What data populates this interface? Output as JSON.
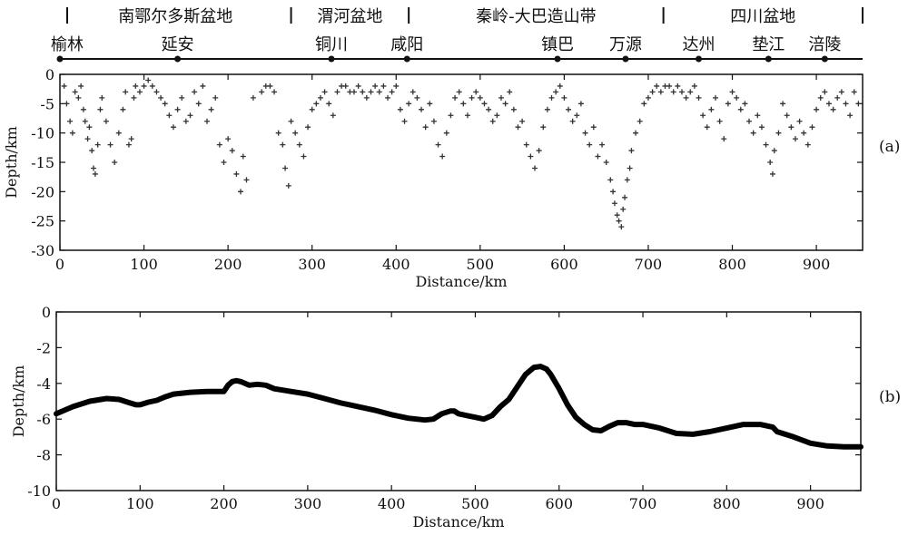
{
  "profile": {
    "regions": [
      {
        "label": "南鄂尔多斯盆地",
        "from_km": 0,
        "to_km": 275
      },
      {
        "label": "渭河盆地",
        "from_km": 275,
        "to_km": 415
      },
      {
        "label": "秦岭-大巴造山带",
        "from_km": 415,
        "to_km": 718
      },
      {
        "label": "四川盆地",
        "from_km": 718,
        "to_km": 955
      }
    ],
    "stations": [
      {
        "label": "榆林",
        "km": 0
      },
      {
        "label": "延安",
        "km": 140
      },
      {
        "label": "铜川",
        "km": 323
      },
      {
        "label": "咸阳",
        "km": 413
      },
      {
        "label": "镇巴",
        "km": 592
      },
      {
        "label": "万源",
        "km": 673
      },
      {
        "label": "达州",
        "km": 760
      },
      {
        "label": "垫江",
        "km": 843
      },
      {
        "label": "涪陵",
        "km": 910
      }
    ]
  },
  "chart_data": [
    {
      "type": "scatter",
      "panel_label": "(a)",
      "xlabel": "Distance/km",
      "ylabel": "Depth/km",
      "xlim": [
        0,
        955
      ],
      "ylim": [
        -30,
        0
      ],
      "xticks": [
        0,
        100,
        200,
        300,
        400,
        500,
        600,
        700,
        800,
        900
      ],
      "yticks": [
        0,
        -5,
        -10,
        -15,
        -20,
        -25,
        -30
      ],
      "marker": "+",
      "points": [
        [
          5,
          -2
        ],
        [
          8,
          -5
        ],
        [
          12,
          -8
        ],
        [
          15,
          -10
        ],
        [
          18,
          -3
        ],
        [
          22,
          -4
        ],
        [
          25,
          -2
        ],
        [
          28,
          -6
        ],
        [
          30,
          -8
        ],
        [
          33,
          -11
        ],
        [
          35,
          -9
        ],
        [
          38,
          -13
        ],
        [
          40,
          -16
        ],
        [
          42,
          -17
        ],
        [
          45,
          -12
        ],
        [
          48,
          -6
        ],
        [
          50,
          -4
        ],
        [
          55,
          -8
        ],
        [
          60,
          -12
        ],
        [
          65,
          -15
        ],
        [
          70,
          -10
        ],
        [
          75,
          -6
        ],
        [
          78,
          -3
        ],
        [
          82,
          -12
        ],
        [
          85,
          -11
        ],
        [
          88,
          -4
        ],
        [
          90,
          -2
        ],
        [
          95,
          -3
        ],
        [
          100,
          -2
        ],
        [
          105,
          -1
        ],
        [
          110,
          -2
        ],
        [
          115,
          -3
        ],
        [
          120,
          -4
        ],
        [
          125,
          -5
        ],
        [
          130,
          -7
        ],
        [
          135,
          -9
        ],
        [
          140,
          -6
        ],
        [
          145,
          -4
        ],
        [
          150,
          -8
        ],
        [
          155,
          -7
        ],
        [
          160,
          -3
        ],
        [
          165,
          -5
        ],
        [
          170,
          -2
        ],
        [
          175,
          -8
        ],
        [
          180,
          -6
        ],
        [
          185,
          -4
        ],
        [
          190,
          -12
        ],
        [
          195,
          -15
        ],
        [
          200,
          -11
        ],
        [
          205,
          -13
        ],
        [
          210,
          -17
        ],
        [
          215,
          -20
        ],
        [
          218,
          -14
        ],
        [
          222,
          -18
        ],
        [
          230,
          -4
        ],
        [
          240,
          -3
        ],
        [
          245,
          -2
        ],
        [
          250,
          -2
        ],
        [
          255,
          -3
        ],
        [
          260,
          -10
        ],
        [
          265,
          -12
        ],
        [
          268,
          -16
        ],
        [
          272,
          -19
        ],
        [
          275,
          -8
        ],
        [
          280,
          -10
        ],
        [
          285,
          -12
        ],
        [
          290,
          -14
        ],
        [
          295,
          -9
        ],
        [
          300,
          -6
        ],
        [
          305,
          -5
        ],
        [
          310,
          -4
        ],
        [
          315,
          -3
        ],
        [
          320,
          -5
        ],
        [
          325,
          -7
        ],
        [
          330,
          -3
        ],
        [
          335,
          -2
        ],
        [
          340,
          -2
        ],
        [
          345,
          -3
        ],
        [
          350,
          -3
        ],
        [
          355,
          -2
        ],
        [
          360,
          -3
        ],
        [
          365,
          -4
        ],
        [
          370,
          -3
        ],
        [
          375,
          -2
        ],
        [
          380,
          -3
        ],
        [
          385,
          -2
        ],
        [
          390,
          -4
        ],
        [
          395,
          -3
        ],
        [
          400,
          -2
        ],
        [
          405,
          -6
        ],
        [
          410,
          -8
        ],
        [
          415,
          -5
        ],
        [
          420,
          -3
        ],
        [
          425,
          -4
        ],
        [
          430,
          -6
        ],
        [
          435,
          -9
        ],
        [
          440,
          -5
        ],
        [
          445,
          -8
        ],
        [
          450,
          -12
        ],
        [
          455,
          -14
        ],
        [
          460,
          -10
        ],
        [
          465,
          -7
        ],
        [
          470,
          -4
        ],
        [
          475,
          -3
        ],
        [
          480,
          -5
        ],
        [
          485,
          -7
        ],
        [
          490,
          -4
        ],
        [
          495,
          -3
        ],
        [
          500,
          -4
        ],
        [
          505,
          -5
        ],
        [
          510,
          -6
        ],
        [
          515,
          -8
        ],
        [
          520,
          -7
        ],
        [
          525,
          -4
        ],
        [
          530,
          -5
        ],
        [
          535,
          -3
        ],
        [
          540,
          -6
        ],
        [
          545,
          -9
        ],
        [
          550,
          -8
        ],
        [
          555,
          -12
        ],
        [
          560,
          -14
        ],
        [
          565,
          -16
        ],
        [
          570,
          -13
        ],
        [
          575,
          -9
        ],
        [
          580,
          -6
        ],
        [
          585,
          -4
        ],
        [
          590,
          -3
        ],
        [
          595,
          -2
        ],
        [
          600,
          -4
        ],
        [
          605,
          -6
        ],
        [
          610,
          -8
        ],
        [
          615,
          -7
        ],
        [
          620,
          -5
        ],
        [
          625,
          -10
        ],
        [
          630,
          -12
        ],
        [
          635,
          -9
        ],
        [
          640,
          -14
        ],
        [
          645,
          -12
        ],
        [
          650,
          -15
        ],
        [
          655,
          -18
        ],
        [
          658,
          -20
        ],
        [
          660,
          -22
        ],
        [
          663,
          -24
        ],
        [
          665,
          -25
        ],
        [
          668,
          -26
        ],
        [
          670,
          -23
        ],
        [
          672,
          -21
        ],
        [
          675,
          -18
        ],
        [
          678,
          -16
        ],
        [
          680,
          -13
        ],
        [
          685,
          -10
        ],
        [
          690,
          -8
        ],
        [
          695,
          -5
        ],
        [
          700,
          -4
        ],
        [
          705,
          -3
        ],
        [
          710,
          -2
        ],
        [
          715,
          -3
        ],
        [
          720,
          -2
        ],
        [
          725,
          -2
        ],
        [
          730,
          -3
        ],
        [
          735,
          -2
        ],
        [
          740,
          -3
        ],
        [
          745,
          -4
        ],
        [
          750,
          -3
        ],
        [
          755,
          -2
        ],
        [
          760,
          -4
        ],
        [
          765,
          -7
        ],
        [
          770,
          -9
        ],
        [
          775,
          -6
        ],
        [
          780,
          -4
        ],
        [
          785,
          -8
        ],
        [
          790,
          -11
        ],
        [
          795,
          -5
        ],
        [
          800,
          -3
        ],
        [
          805,
          -4
        ],
        [
          810,
          -6
        ],
        [
          815,
          -5
        ],
        [
          820,
          -8
        ],
        [
          825,
          -10
        ],
        [
          830,
          -7
        ],
        [
          835,
          -9
        ],
        [
          840,
          -12
        ],
        [
          845,
          -15
        ],
        [
          848,
          -17
        ],
        [
          850,
          -13
        ],
        [
          855,
          -10
        ],
        [
          860,
          -5
        ],
        [
          865,
          -7
        ],
        [
          870,
          -9
        ],
        [
          875,
          -11
        ],
        [
          880,
          -8
        ],
        [
          885,
          -10
        ],
        [
          890,
          -12
        ],
        [
          895,
          -9
        ],
        [
          900,
          -6
        ],
        [
          905,
          -4
        ],
        [
          910,
          -3
        ],
        [
          915,
          -5
        ],
        [
          920,
          -6
        ],
        [
          925,
          -4
        ],
        [
          930,
          -3
        ],
        [
          935,
          -5
        ],
        [
          940,
          -7
        ],
        [
          945,
          -3
        ],
        [
          950,
          -5
        ]
      ]
    },
    {
      "type": "line",
      "panel_label": "(b)",
      "xlabel": "Distance/km",
      "ylabel": "Depth/km",
      "xlim": [
        0,
        960
      ],
      "ylim": [
        -10,
        0
      ],
      "xticks": [
        0,
        100,
        200,
        300,
        400,
        500,
        600,
        700,
        800,
        900
      ],
      "yticks": [
        0,
        -2,
        -4,
        -6,
        -8,
        -10
      ],
      "series": [
        {
          "x": [
            0,
            20,
            40,
            60,
            75,
            85,
            95,
            100,
            110,
            120,
            130,
            140,
            160,
            180,
            200,
            205,
            210,
            215,
            220,
            225,
            230,
            240,
            250,
            260,
            280,
            300,
            320,
            340,
            360,
            380,
            400,
            420,
            440,
            450,
            460,
            470,
            475,
            480,
            490,
            500,
            510,
            520,
            530,
            540,
            550,
            560,
            570,
            578,
            585,
            590,
            600,
            610,
            620,
            630,
            640,
            650,
            660,
            670,
            680,
            690,
            700,
            720,
            740,
            760,
            780,
            800,
            820,
            840,
            855,
            860,
            880,
            900,
            920,
            940,
            960
          ],
          "y": [
            -5.7,
            -5.3,
            -5.0,
            -4.85,
            -4.9,
            -5.05,
            -5.2,
            -5.2,
            -5.05,
            -4.95,
            -4.75,
            -4.6,
            -4.5,
            -4.45,
            -4.45,
            -4.1,
            -3.9,
            -3.85,
            -3.9,
            -4.0,
            -4.1,
            -4.05,
            -4.1,
            -4.3,
            -4.45,
            -4.6,
            -4.85,
            -5.1,
            -5.3,
            -5.5,
            -5.75,
            -5.95,
            -6.05,
            -6.0,
            -5.7,
            -5.55,
            -5.55,
            -5.7,
            -5.8,
            -5.9,
            -6.0,
            -5.8,
            -5.3,
            -4.9,
            -4.2,
            -3.5,
            -3.1,
            -3.05,
            -3.2,
            -3.5,
            -4.3,
            -5.2,
            -5.9,
            -6.3,
            -6.6,
            -6.65,
            -6.4,
            -6.2,
            -6.2,
            -6.3,
            -6.3,
            -6.5,
            -6.8,
            -6.85,
            -6.7,
            -6.5,
            -6.3,
            -6.3,
            -6.45,
            -6.7,
            -7.0,
            -7.35,
            -7.5,
            -7.55,
            -7.55
          ]
        }
      ]
    }
  ]
}
